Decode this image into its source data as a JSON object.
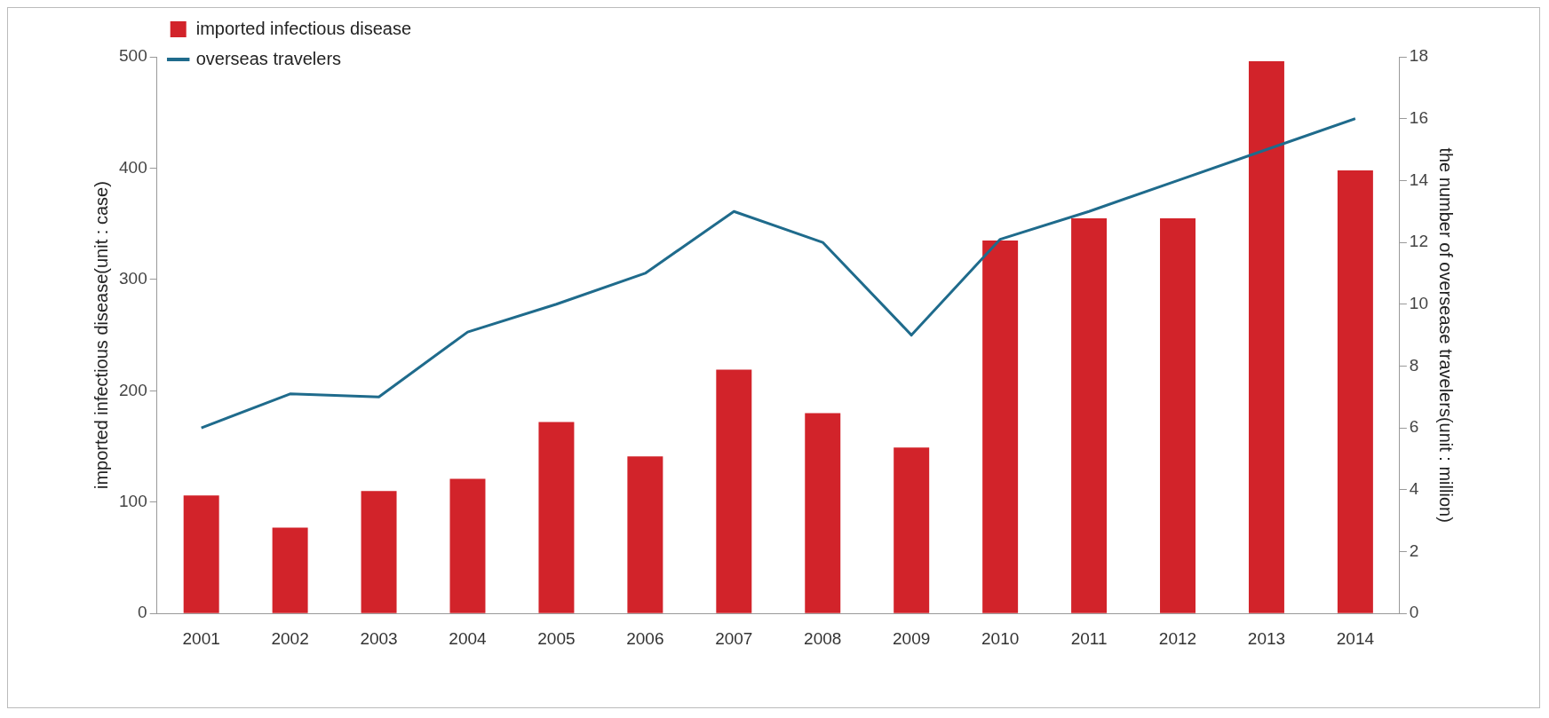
{
  "chart_data": {
    "type": "bar",
    "categories": [
      "2001",
      "2002",
      "2003",
      "2004",
      "2005",
      "2006",
      "2007",
      "2008",
      "2009",
      "2010",
      "2011",
      "2012",
      "2013",
      "2014"
    ],
    "ylabel": "imported infectious disease(unit : case)",
    "y2label": "the number of oversease travelers(unit : million)",
    "ylim": [
      0,
      500
    ],
    "yticks": [
      0,
      100,
      200,
      300,
      400,
      500
    ],
    "y2lim": [
      0,
      18
    ],
    "y2ticks": [
      0,
      2,
      4,
      6,
      8,
      10,
      12,
      14,
      16,
      18
    ],
    "series": [
      {
        "name": "imported infectious disease",
        "color": "#d2232a",
        "values": [
          106,
          77,
          110,
          121,
          172,
          141,
          219,
          180,
          149,
          335,
          355,
          355,
          496,
          398
        ]
      },
      {
        "name": "overseas travelers",
        "type": "line",
        "axis": "y2",
        "color": "#1f6b8c",
        "values": [
          6,
          7.1,
          7,
          9.1,
          10,
          11,
          13,
          12,
          9,
          12.1,
          13,
          14,
          15,
          16
        ]
      }
    ],
    "grid": false,
    "legend": "top left",
    "marker": "none"
  }
}
